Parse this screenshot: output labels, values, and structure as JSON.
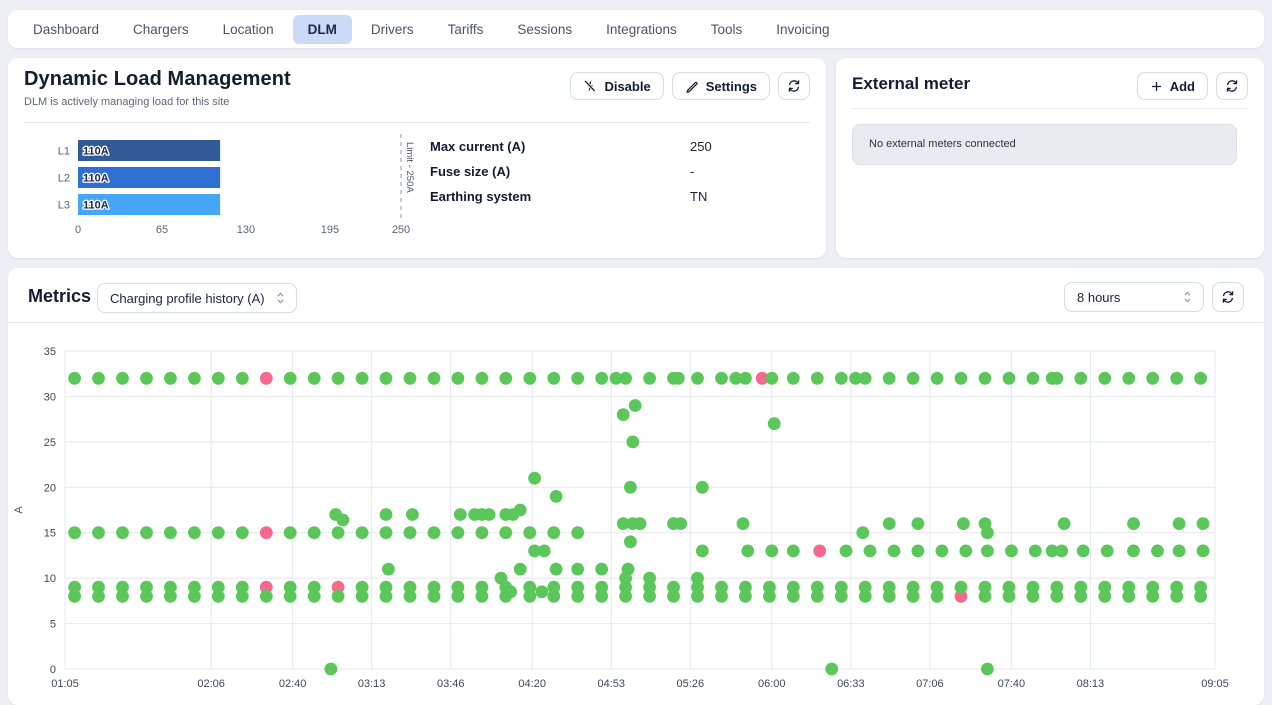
{
  "nav": {
    "items": [
      "Dashboard",
      "Chargers",
      "Location",
      "DLM",
      "Drivers",
      "Tariffs",
      "Sessions",
      "Integrations",
      "Tools",
      "Invoicing"
    ],
    "active": "DLM"
  },
  "dlm": {
    "title": "Dynamic Load Management",
    "subtitle": "DLM is actively managing load for this site",
    "disable_label": "Disable",
    "settings_label": "Settings",
    "info": [
      {
        "label": "Max current (A)",
        "value": "250"
      },
      {
        "label": "Fuse size (A)",
        "value": "-"
      },
      {
        "label": "Earthing system",
        "value": "TN"
      }
    ],
    "chart_data": {
      "type": "bar",
      "orientation": "horizontal",
      "categories": [
        "L1",
        "L2",
        "L3"
      ],
      "values": [
        110,
        110,
        110
      ],
      "bar_labels": [
        "110A",
        "110A",
        "110A"
      ],
      "colors": [
        "#315A96",
        "#2E6FD3",
        "#47A5F6"
      ],
      "xlim": [
        0,
        250
      ],
      "xticks": [
        0,
        65,
        130,
        195,
        250
      ],
      "limit": {
        "value": 250,
        "label": "Limit - 250A"
      }
    }
  },
  "external_meter": {
    "title": "External meter",
    "add_label": "Add",
    "empty_message": "No external meters connected"
  },
  "metrics": {
    "title": "Metrics",
    "metric_select": "Charging profile history (A)",
    "range_select": "8 hours",
    "chart_data": {
      "type": "scatter",
      "title": "Charging profile history (A)",
      "ylabel": "A",
      "ylim": [
        0,
        35
      ],
      "yticks": [
        0,
        5,
        10,
        15,
        20,
        25,
        30,
        35
      ],
      "x_unit": "minutes after 01:05",
      "x_max": 480,
      "grid": true,
      "xticks": [
        {
          "label": "01:05",
          "min": 0
        },
        {
          "label": "02:06",
          "min": 61
        },
        {
          "label": "02:40",
          "min": 95
        },
        {
          "label": "03:13",
          "min": 128
        },
        {
          "label": "03:46",
          "min": 161
        },
        {
          "label": "04:20",
          "min": 195
        },
        {
          "label": "04:53",
          "min": 228
        },
        {
          "label": "05:26",
          "min": 261
        },
        {
          "label": "06:00",
          "min": 295
        },
        {
          "label": "06:33",
          "min": 328
        },
        {
          "label": "07:06",
          "min": 361
        },
        {
          "label": "07:40",
          "min": 395
        },
        {
          "label": "08:13",
          "min": 428
        },
        {
          "label": "09:05",
          "min": 480
        }
      ],
      "series": [
        {
          "name": "charging-profile",
          "color": "#5BC75B",
          "points": [
            [
              4,
              32
            ],
            [
              14,
              32
            ],
            [
              24,
              32
            ],
            [
              34,
              32
            ],
            [
              44,
              32
            ],
            [
              54,
              32
            ],
            [
              64,
              32
            ],
            [
              74,
              32
            ],
            [
              94,
              32
            ],
            [
              104,
              32
            ],
            [
              114,
              32
            ],
            [
              124,
              32
            ],
            [
              134,
              32
            ],
            [
              144,
              32
            ],
            [
              154,
              32
            ],
            [
              164,
              32
            ],
            [
              174,
              32
            ],
            [
              184,
              32
            ],
            [
              194,
              32
            ],
            [
              204,
              32
            ],
            [
              214,
              32
            ],
            [
              224,
              32
            ],
            [
              230,
              32
            ],
            [
              234,
              32
            ],
            [
              244,
              32
            ],
            [
              254,
              32
            ],
            [
              256,
              32
            ],
            [
              264,
              32
            ],
            [
              274,
              32
            ],
            [
              280,
              32
            ],
            [
              284,
              32
            ],
            [
              295,
              32
            ],
            [
              304,
              32
            ],
            [
              314,
              32
            ],
            [
              324,
              32
            ],
            [
              330,
              32
            ],
            [
              334,
              32
            ],
            [
              344,
              32
            ],
            [
              354,
              32
            ],
            [
              364,
              32
            ],
            [
              374,
              32
            ],
            [
              384,
              32
            ],
            [
              394,
              32
            ],
            [
              404,
              32
            ],
            [
              412,
              32
            ],
            [
              414,
              32
            ],
            [
              424,
              32
            ],
            [
              434,
              32
            ],
            [
              444,
              32
            ],
            [
              454,
              32
            ],
            [
              464,
              32
            ],
            [
              474,
              32
            ],
            [
              4,
              15
            ],
            [
              14,
              15
            ],
            [
              24,
              15
            ],
            [
              34,
              15
            ],
            [
              44,
              15
            ],
            [
              54,
              15
            ],
            [
              64,
              15
            ],
            [
              74,
              15
            ],
            [
              94,
              15
            ],
            [
              104,
              15
            ],
            [
              114,
              15
            ],
            [
              124,
              15
            ],
            [
              134,
              15
            ],
            [
              144,
              15
            ],
            [
              154,
              15
            ],
            [
              164,
              15
            ],
            [
              174,
              15
            ],
            [
              184,
              15
            ],
            [
              194,
              15
            ],
            [
              204,
              15
            ],
            [
              214,
              15
            ],
            [
              333,
              15
            ],
            [
              385,
              15
            ],
            [
              113,
              17
            ],
            [
              116,
              16.4
            ],
            [
              134,
              17
            ],
            [
              145,
              17
            ],
            [
              165,
              17
            ],
            [
              171,
              17
            ],
            [
              174,
              17
            ],
            [
              177,
              17
            ],
            [
              184,
              17
            ],
            [
              187,
              17
            ],
            [
              190,
              17.5
            ],
            [
              233,
              16
            ],
            [
              237,
              16
            ],
            [
              240,
              16
            ],
            [
              254,
              16
            ],
            [
              257,
              16
            ],
            [
              283,
              16
            ],
            [
              344,
              16
            ],
            [
              356,
              16
            ],
            [
              375,
              16
            ],
            [
              384,
              16
            ],
            [
              417,
              16
            ],
            [
              446,
              16
            ],
            [
              465,
              16
            ],
            [
              475,
              16
            ],
            [
              236,
              14
            ],
            [
              196,
              13
            ],
            [
              200,
              13
            ],
            [
              266,
              13
            ],
            [
              285,
              13
            ],
            [
              295,
              13
            ],
            [
              304,
              13
            ],
            [
              326,
              13
            ],
            [
              336,
              13
            ],
            [
              346,
              13
            ],
            [
              356,
              13
            ],
            [
              366,
              13
            ],
            [
              376,
              13
            ],
            [
              385,
              13
            ],
            [
              395,
              13
            ],
            [
              405,
              13
            ],
            [
              412,
              13
            ],
            [
              416,
              13
            ],
            [
              425,
              13
            ],
            [
              435,
              13
            ],
            [
              446,
              13
            ],
            [
              456,
              13
            ],
            [
              465,
              13
            ],
            [
              475,
              13
            ],
            [
              135,
              11
            ],
            [
              190,
              11
            ],
            [
              205,
              11
            ],
            [
              214,
              11
            ],
            [
              224,
              11
            ],
            [
              235,
              11
            ],
            [
              182,
              10
            ],
            [
              234,
              10
            ],
            [
              244,
              10
            ],
            [
              264,
              10
            ],
            [
              196,
              21
            ],
            [
              205,
              19
            ],
            [
              236,
              20
            ],
            [
              266,
              20
            ],
            [
              237,
              25
            ],
            [
              233,
              28
            ],
            [
              238,
              29
            ],
            [
              296,
              27
            ],
            [
              111,
              0
            ],
            [
              320,
              0
            ],
            [
              385,
              0
            ],
            [
              4,
              9
            ],
            [
              14,
              9
            ],
            [
              24,
              9
            ],
            [
              34,
              9
            ],
            [
              44,
              9
            ],
            [
              54,
              9
            ],
            [
              64,
              9
            ],
            [
              74,
              9
            ],
            [
              94,
              9
            ],
            [
              104,
              9
            ],
            [
              124,
              9
            ],
            [
              134,
              9
            ],
            [
              144,
              9
            ],
            [
              154,
              9
            ],
            [
              164,
              9
            ],
            [
              174,
              9
            ],
            [
              184,
              9
            ],
            [
              194,
              9
            ],
            [
              204,
              9
            ],
            [
              214,
              9
            ],
            [
              224,
              9
            ],
            [
              234,
              9
            ],
            [
              244,
              9
            ],
            [
              254,
              9
            ],
            [
              264,
              9
            ],
            [
              274,
              9
            ],
            [
              284,
              9
            ],
            [
              294,
              9
            ],
            [
              304,
              9
            ],
            [
              314,
              9
            ],
            [
              324,
              9
            ],
            [
              334,
              9
            ],
            [
              344,
              9
            ],
            [
              354,
              9
            ],
            [
              364,
              9
            ],
            [
              374,
              9
            ],
            [
              384,
              9
            ],
            [
              394,
              9
            ],
            [
              404,
              9
            ],
            [
              414,
              9
            ],
            [
              424,
              9
            ],
            [
              434,
              9
            ],
            [
              444,
              9
            ],
            [
              454,
              9
            ],
            [
              464,
              9
            ],
            [
              474,
              9
            ],
            [
              186,
              8.5
            ],
            [
              199,
              8.5
            ],
            [
              4,
              8
            ],
            [
              14,
              8
            ],
            [
              24,
              8
            ],
            [
              34,
              8
            ],
            [
              44,
              8
            ],
            [
              54,
              8
            ],
            [
              64,
              8
            ],
            [
              74,
              8
            ],
            [
              84,
              8
            ],
            [
              94,
              8
            ],
            [
              104,
              8
            ],
            [
              114,
              8
            ],
            [
              124,
              8
            ],
            [
              134,
              8
            ],
            [
              144,
              8
            ],
            [
              154,
              8
            ],
            [
              164,
              8
            ],
            [
              174,
              8
            ],
            [
              184,
              8
            ],
            [
              194,
              8
            ],
            [
              204,
              8
            ],
            [
              214,
              8
            ],
            [
              224,
              8
            ],
            [
              234,
              8
            ],
            [
              244,
              8
            ],
            [
              254,
              8
            ],
            [
              264,
              8
            ],
            [
              274,
              8
            ],
            [
              284,
              8
            ],
            [
              294,
              8
            ],
            [
              304,
              8
            ],
            [
              314,
              8
            ],
            [
              324,
              8
            ],
            [
              334,
              8
            ],
            [
              344,
              8
            ],
            [
              354,
              8
            ],
            [
              364,
              8
            ],
            [
              384,
              8
            ],
            [
              394,
              8
            ],
            [
              404,
              8
            ],
            [
              414,
              8
            ],
            [
              424,
              8
            ],
            [
              434,
              8
            ],
            [
              444,
              8
            ],
            [
              454,
              8
            ],
            [
              464,
              8
            ],
            [
              474,
              8
            ]
          ]
        },
        {
          "name": "limited",
          "color": "#F5698F",
          "points": [
            [
              84,
              32
            ],
            [
              291,
              32
            ],
            [
              84,
              15
            ],
            [
              84,
              9
            ],
            [
              114,
              9
            ],
            [
              315,
              13
            ],
            [
              374,
              8
            ]
          ]
        }
      ]
    }
  }
}
